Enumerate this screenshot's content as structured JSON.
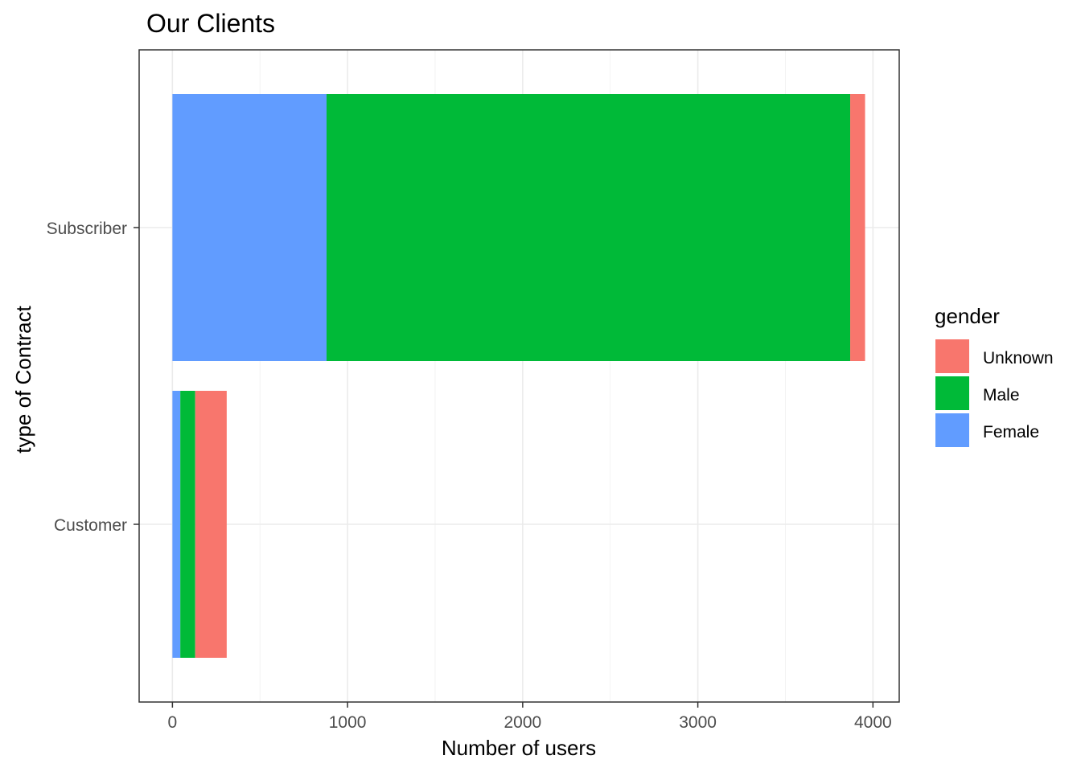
{
  "chart_data": {
    "type": "bar",
    "orientation": "horizontal",
    "stacked": true,
    "title": "Our Clients",
    "xlabel": "Number of users",
    "ylabel": "type of Contract",
    "categories": [
      "Subscriber",
      "Customer"
    ],
    "series": [
      {
        "name": "Female",
        "color": "#619CFF",
        "values": [
          880,
          45
        ]
      },
      {
        "name": "Male",
        "color": "#00BA38",
        "values": [
          2990,
          85
        ]
      },
      {
        "name": "Unknown",
        "color": "#F8766D",
        "values": [
          85,
          180
        ]
      }
    ],
    "xlim": [
      -190,
      4150
    ],
    "x_ticks": [
      0,
      1000,
      2000,
      3000,
      4000
    ],
    "x_tick_labels": [
      "0",
      "1000",
      "2000",
      "3000",
      "4000"
    ],
    "grid": true,
    "legend": {
      "title": "gender",
      "placement": "right",
      "items": [
        "Unknown",
        "Male",
        "Female"
      ]
    }
  }
}
